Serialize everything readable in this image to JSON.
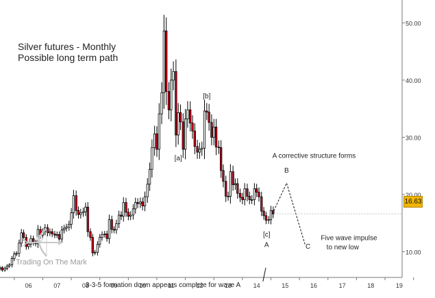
{
  "chart_data": {
    "type": "candlestick",
    "title": "Silver futures - Monthly",
    "subtitle": "Possible long term path",
    "y_ticks": [
      "50.00",
      "40.00",
      "30.00",
      "20.00",
      "10.00"
    ],
    "ylim": [
      5.5,
      54
    ],
    "x_ticks": [
      "06",
      "07",
      "08",
      "09",
      "10",
      "11",
      "12",
      "13",
      "14",
      "15",
      "16",
      "17",
      "18",
      "19"
    ],
    "xlim": [
      2005.5,
      2019.6
    ],
    "last_price": "16.63",
    "colors": {
      "up": "#ffffff",
      "down": "#d0021b",
      "outline": "#000000"
    },
    "monthly_closes": [
      [
        2005.42,
        7.0
      ],
      [
        2005.5,
        7.2
      ],
      [
        2005.58,
        6.8
      ],
      [
        2005.67,
        7.1
      ],
      [
        2005.75,
        7.5
      ],
      [
        2005.83,
        7.7
      ],
      [
        2005.92,
        8.8
      ],
      [
        2006.0,
        9.6
      ],
      [
        2006.08,
        9.7
      ],
      [
        2006.17,
        11.5
      ],
      [
        2006.25,
        13.3
      ],
      [
        2006.33,
        12.5
      ],
      [
        2006.42,
        10.9
      ],
      [
        2006.5,
        11.3
      ],
      [
        2006.58,
        12.3
      ],
      [
        2006.67,
        11.6
      ],
      [
        2006.75,
        11.4
      ],
      [
        2006.83,
        13.9
      ],
      [
        2006.92,
        12.9
      ],
      [
        2007.0,
        13.5
      ],
      [
        2007.08,
        14.2
      ],
      [
        2007.17,
        13.3
      ],
      [
        2007.25,
        13.5
      ],
      [
        2007.33,
        13.1
      ],
      [
        2007.42,
        12.9
      ],
      [
        2007.5,
        13.0
      ],
      [
        2007.58,
        12.2
      ],
      [
        2007.67,
        13.8
      ],
      [
        2007.75,
        14.1
      ],
      [
        2007.83,
        14.3
      ],
      [
        2007.92,
        14.8
      ],
      [
        2008.0,
        16.8
      ],
      [
        2008.08,
        19.8
      ],
      [
        2008.17,
        17.2
      ],
      [
        2008.25,
        16.5
      ],
      [
        2008.33,
        16.8
      ],
      [
        2008.42,
        17.0
      ],
      [
        2008.5,
        17.8
      ],
      [
        2008.58,
        13.5
      ],
      [
        2008.67,
        12.5
      ],
      [
        2008.75,
        9.8
      ],
      [
        2008.83,
        9.9
      ],
      [
        2008.92,
        11.3
      ],
      [
        2009.0,
        12.5
      ],
      [
        2009.08,
        13.0
      ],
      [
        2009.17,
        13.1
      ],
      [
        2009.25,
        12.3
      ],
      [
        2009.33,
        15.6
      ],
      [
        2009.42,
        13.9
      ],
      [
        2009.5,
        13.8
      ],
      [
        2009.58,
        14.9
      ],
      [
        2009.67,
        16.4
      ],
      [
        2009.75,
        16.2
      ],
      [
        2009.83,
        18.6
      ],
      [
        2009.92,
        16.9
      ],
      [
        2010.0,
        16.2
      ],
      [
        2010.08,
        16.4
      ],
      [
        2010.17,
        17.5
      ],
      [
        2010.25,
        18.6
      ],
      [
        2010.33,
        18.4
      ],
      [
        2010.42,
        18.7
      ],
      [
        2010.5,
        18.0
      ],
      [
        2010.58,
        19.6
      ],
      [
        2010.67,
        21.8
      ],
      [
        2010.75,
        24.4
      ],
      [
        2010.83,
        28.2
      ],
      [
        2010.92,
        30.6
      ],
      [
        2011.0,
        27.9
      ],
      [
        2011.08,
        34.1
      ],
      [
        2011.17,
        37.8
      ],
      [
        2011.25,
        48.6
      ],
      [
        2011.33,
        38.0
      ],
      [
        2011.42,
        34.8
      ],
      [
        2011.5,
        40.0
      ],
      [
        2011.58,
        41.5
      ],
      [
        2011.67,
        30.4
      ],
      [
        2011.75,
        34.3
      ],
      [
        2011.83,
        32.7
      ],
      [
        2011.92,
        27.9
      ],
      [
        2012.0,
        33.2
      ],
      [
        2012.08,
        34.8
      ],
      [
        2012.17,
        32.5
      ],
      [
        2012.25,
        31.1
      ],
      [
        2012.33,
        28.4
      ],
      [
        2012.42,
        27.4
      ],
      [
        2012.5,
        27.9
      ],
      [
        2012.58,
        28.1
      ],
      [
        2012.67,
        34.6
      ],
      [
        2012.75,
        34.4
      ],
      [
        2012.83,
        32.6
      ],
      [
        2012.92,
        30.0
      ],
      [
        2013.0,
        31.8
      ],
      [
        2013.08,
        28.3
      ],
      [
        2013.17,
        28.2
      ],
      [
        2013.25,
        24.2
      ],
      [
        2013.33,
        22.3
      ],
      [
        2013.42,
        19.7
      ],
      [
        2013.5,
        19.7
      ],
      [
        2013.58,
        24.0
      ],
      [
        2013.67,
        21.7
      ],
      [
        2013.75,
        21.9
      ],
      [
        2013.83,
        20.2
      ],
      [
        2013.92,
        19.5
      ],
      [
        2014.0,
        19.1
      ],
      [
        2014.08,
        21.0
      ],
      [
        2014.17,
        19.7
      ],
      [
        2014.25,
        19.1
      ],
      [
        2014.33,
        19.1
      ],
      [
        2014.42,
        21.0
      ],
      [
        2014.5,
        20.4
      ],
      [
        2014.58,
        19.6
      ],
      [
        2014.67,
        17.1
      ],
      [
        2014.75,
        16.3
      ],
      [
        2014.83,
        15.5
      ],
      [
        2014.92,
        15.6
      ],
      [
        2015.0,
        17.2
      ],
      [
        2015.08,
        16.6
      ]
    ],
    "annotations": [
      {
        "text": "[a]",
        "x": 2011.75,
        "y": 26.0
      },
      {
        "text": "[b]",
        "x": 2012.75,
        "y": 36.8
      },
      {
        "text": "[c]",
        "x": 2014.85,
        "y": 12.6
      },
      {
        "text": "A",
        "x": 2014.85,
        "y": 10.8
      },
      {
        "text": "A corrective structure forms",
        "x": 2015.05,
        "y": 26.4
      },
      {
        "text": "B",
        "x": 2015.55,
        "y": 23.8
      },
      {
        "text": "C",
        "x": 2016.3,
        "y": 10.5
      },
      {
        "text": "Five wave impulse",
        "x": 2016.75,
        "y": 12.0
      },
      {
        "text": "to new low",
        "x": 2016.95,
        "y": 10.4
      },
      {
        "text": "3-3-5 formation down appears complete for wave A",
        "x": 2008.5,
        "y": 3.8
      }
    ],
    "projection": [
      [
        2015.05,
        16.6
      ],
      [
        2015.55,
        22.0
      ],
      [
        2016.2,
        11.2
      ]
    ]
  },
  "branding": {
    "logo_text": "Trading On The Mark"
  }
}
